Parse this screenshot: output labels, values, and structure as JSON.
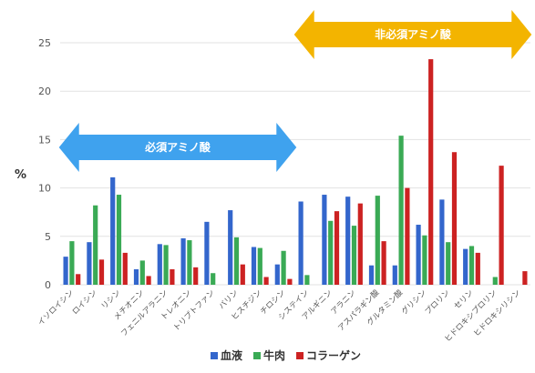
{
  "chart_data": {
    "type": "bar",
    "ylabel": "%",
    "ylim": [
      0,
      25
    ],
    "yticks": [
      0,
      5,
      10,
      15,
      20,
      25
    ],
    "grid": true,
    "legend_position": "bottom",
    "categories": [
      "イソロイシン",
      "ロイシン",
      "リシン",
      "メチオニン",
      "フェニルアラニン",
      "トレオニン",
      "トリプトファン",
      "バリン",
      "ヒスチジン",
      "チロシン",
      "システイン",
      "アルギニン",
      "アラニン",
      "アスパラギン酸",
      "グルタミン酸",
      "グリシン",
      "プロリン",
      "セリン",
      "ヒドロキシプロリン",
      "ヒドロキシリシン"
    ],
    "series": [
      {
        "name": "血液",
        "color": "#3366cc",
        "values": [
          2.9,
          4.4,
          11.1,
          1.6,
          4.2,
          4.8,
          6.5,
          7.7,
          3.9,
          2.1,
          8.6,
          9.3,
          9.1,
          2.0,
          2.0,
          6.2,
          8.8,
          3.7,
          0,
          0
        ]
      },
      {
        "name": "牛肉",
        "color": "#3aaa55",
        "values": [
          4.5,
          8.2,
          9.3,
          2.5,
          4.1,
          4.6,
          1.2,
          4.9,
          3.8,
          3.5,
          1.0,
          6.6,
          6.1,
          9.2,
          15.4,
          5.1,
          4.4,
          4.0,
          0.8,
          0
        ]
      },
      {
        "name": "コラーゲン",
        "color": "#cc2222",
        "values": [
          1.1,
          2.6,
          3.3,
          0.9,
          1.6,
          1.8,
          0,
          2.1,
          0.8,
          0.6,
          0,
          7.6,
          8.4,
          4.5,
          10.0,
          23.3,
          13.7,
          3.3,
          12.3,
          1.4
        ]
      }
    ],
    "annotations": [
      {
        "text": "必須アミノ酸",
        "color": "#3fa2ee",
        "from_category": 0,
        "to_category": 9
      },
      {
        "text": "非必須アミノ酸",
        "color": "#f3b400",
        "from_category": 10,
        "to_category": 19
      }
    ]
  }
}
